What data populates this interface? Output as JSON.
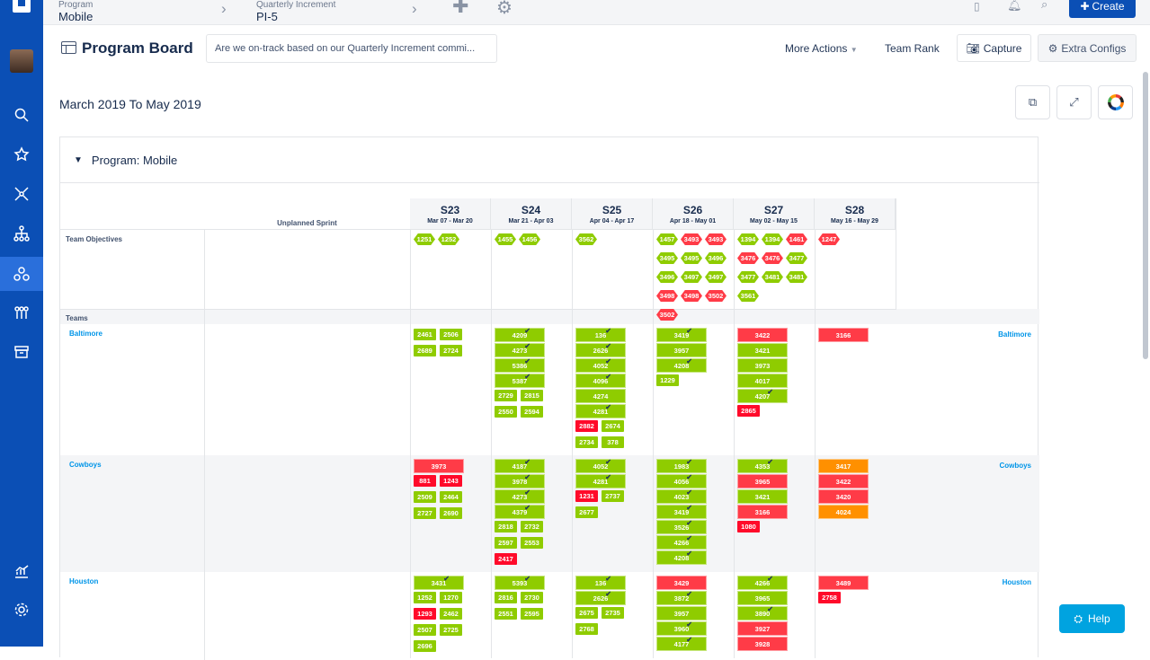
{
  "topbar": {
    "program_label": "Program",
    "program_value": "Mobile",
    "pi_label": "Quarterly Increment",
    "pi_value": "PI-5",
    "create_label": "Create"
  },
  "header": {
    "title": "Program Board",
    "question": "Are we on-track based on our Quarterly Increment commi...",
    "more_actions": "More Actions",
    "team_rank": "Team Rank",
    "capture": "Capture",
    "extra_configs": "Extra Configs"
  },
  "date_range": "March 2019 To May 2019",
  "board": {
    "program_title": "Program: Mobile",
    "unplanned": "Unplanned Sprint",
    "objectives_label": "Team Objectives",
    "teams_label": "Teams",
    "sprints": [
      {
        "name": "S23",
        "dates": "Mar 07 - Mar 20"
      },
      {
        "name": "S24",
        "dates": "Mar 21 - Apr 03"
      },
      {
        "name": "S25",
        "dates": "Apr 04 - Apr 17"
      },
      {
        "name": "S26",
        "dates": "Apr 18 - May 01"
      },
      {
        "name": "S27",
        "dates": "May 02 - May 15"
      },
      {
        "name": "S28",
        "dates": "May 16 - May 29"
      }
    ],
    "objectives": [
      [
        [
          "1251",
          "g"
        ],
        [
          "1252",
          "g"
        ]
      ],
      [
        [
          "1455",
          "g"
        ],
        [
          "1456",
          "g"
        ]
      ],
      [
        [
          "3562",
          "g"
        ]
      ],
      [
        [
          "1457",
          "g"
        ],
        [
          "3493",
          "r"
        ],
        [
          "3493",
          "r"
        ],
        [
          "3495",
          "g"
        ],
        [
          "3495",
          "g"
        ],
        [
          "3496",
          "g"
        ],
        [
          "3496",
          "g"
        ],
        [
          "3497",
          "g"
        ],
        [
          "3497",
          "g"
        ],
        [
          "3498",
          "r"
        ],
        [
          "3498",
          "r"
        ],
        [
          "3502",
          "r"
        ],
        [
          "3502",
          "r"
        ]
      ],
      [
        [
          "1394",
          "g"
        ],
        [
          "1394",
          "g"
        ],
        [
          "1461",
          "r"
        ],
        [
          "3476",
          "r"
        ],
        [
          "3476",
          "r"
        ],
        [
          "3477",
          "g"
        ],
        [
          "3477",
          "g"
        ],
        [
          "3481",
          "g"
        ],
        [
          "3481",
          "g"
        ],
        [
          "3561",
          "g"
        ]
      ],
      [
        [
          "1247",
          "r"
        ]
      ]
    ],
    "teams": [
      {
        "name": "Baltimore",
        "cells": [
          [
            [
              "chip",
              "2461",
              "g"
            ],
            [
              "chip",
              "2506",
              "g"
            ],
            [
              "chip",
              "2689",
              "g"
            ],
            [
              "chip",
              "2724",
              "g"
            ]
          ],
          [
            [
              "card",
              "4209",
              "g",
              1
            ],
            [
              "card",
              "4273",
              "g",
              1
            ],
            [
              "card",
              "5386",
              "g",
              1
            ],
            [
              "card",
              "5387",
              "g",
              1
            ],
            [
              "chip",
              "2729",
              "g"
            ],
            [
              "chip",
              "2815",
              "g"
            ],
            [
              "chip",
              "2550",
              "g"
            ],
            [
              "chip",
              "2594",
              "g"
            ]
          ],
          [
            [
              "card",
              "136",
              "g",
              1
            ],
            [
              "card",
              "2626",
              "g",
              1
            ],
            [
              "card",
              "4052",
              "g",
              1
            ],
            [
              "card",
              "4096",
              "g",
              1
            ],
            [
              "card",
              "4274",
              "g"
            ],
            [
              "card",
              "4281",
              "g",
              1
            ],
            [
              "chip",
              "2882",
              "r"
            ],
            [
              "chip",
              "2674",
              "g"
            ],
            [
              "chip",
              "2734",
              "g"
            ],
            [
              "chip",
              "378",
              "g"
            ]
          ],
          [
            [
              "card",
              "3419",
              "g",
              1
            ],
            [
              "card",
              "3957",
              "g"
            ],
            [
              "card",
              "4208",
              "g",
              1
            ],
            [
              "chip",
              "1229",
              "g"
            ]
          ],
          [
            [
              "card",
              "3422",
              "r"
            ],
            [
              "card",
              "3421",
              "g"
            ],
            [
              "card",
              "3973",
              "g"
            ],
            [
              "card",
              "4017",
              "g"
            ],
            [
              "card",
              "4207",
              "g",
              1
            ],
            [
              "chip",
              "2865",
              "r"
            ]
          ],
          [
            [
              "card",
              "3166",
              "r"
            ]
          ]
        ]
      },
      {
        "name": "Cowboys",
        "cells": [
          [
            [
              "card",
              "3973",
              "r"
            ],
            [
              "chip",
              "881",
              "r"
            ],
            [
              "chip",
              "1243",
              "r"
            ],
            [
              "chip",
              "2509",
              "g"
            ],
            [
              "chip",
              "2464",
              "g"
            ],
            [
              "chip",
              "2727",
              "g"
            ],
            [
              "chip",
              "2690",
              "g"
            ]
          ],
          [
            [
              "card",
              "4187",
              "g",
              1
            ],
            [
              "card",
              "3978",
              "g",
              1
            ],
            [
              "card",
              "4273",
              "g",
              1
            ],
            [
              "card",
              "4379",
              "g",
              1
            ],
            [
              "chip",
              "2818",
              "g"
            ],
            [
              "chip",
              "2732",
              "g"
            ],
            [
              "chip",
              "2597",
              "g"
            ],
            [
              "chip",
              "2553",
              "g"
            ],
            [
              "chip",
              "2417",
              "r"
            ]
          ],
          [
            [
              "card",
              "4052",
              "g",
              1
            ],
            [
              "card",
              "4281",
              "g",
              1
            ],
            [
              "chip",
              "1231",
              "r"
            ],
            [
              "chip",
              "2737",
              "g"
            ],
            [
              "chip",
              "2677",
              "g"
            ]
          ],
          [
            [
              "card",
              "1983",
              "g",
              1
            ],
            [
              "card",
              "4056",
              "g",
              1
            ],
            [
              "card",
              "4023",
              "g",
              1
            ],
            [
              "card",
              "3419",
              "g",
              1
            ],
            [
              "card",
              "3526",
              "g",
              1
            ],
            [
              "card",
              "4266",
              "g",
              1
            ],
            [
              "card",
              "4208",
              "g",
              1
            ]
          ],
          [
            [
              "card",
              "4353",
              "g",
              1
            ],
            [
              "card",
              "3965",
              "r"
            ],
            [
              "card",
              "3421",
              "g"
            ],
            [
              "card",
              "3166",
              "r"
            ],
            [
              "chip",
              "1080",
              "r"
            ]
          ],
          [
            [
              "card",
              "3417",
              "o"
            ],
            [
              "card",
              "3422",
              "r"
            ],
            [
              "card",
              "3420",
              "r"
            ],
            [
              "card",
              "4024",
              "o"
            ]
          ]
        ]
      },
      {
        "name": "Houston",
        "cells": [
          [
            [
              "card",
              "3431",
              "g",
              1
            ],
            [
              "chip",
              "1252",
              "g"
            ],
            [
              "chip",
              "1270",
              "g"
            ],
            [
              "chip",
              "1293",
              "r"
            ],
            [
              "chip",
              "2462",
              "g"
            ],
            [
              "chip",
              "2507",
              "g"
            ],
            [
              "chip",
              "2725",
              "g"
            ],
            [
              "chip",
              "2696",
              "g"
            ]
          ],
          [
            [
              "card",
              "5393",
              "g",
              1
            ],
            [
              "chip",
              "2816",
              "g"
            ],
            [
              "chip",
              "2730",
              "g"
            ],
            [
              "chip",
              "2551",
              "g"
            ],
            [
              "chip",
              "2595",
              "g"
            ]
          ],
          [
            [
              "card",
              "136",
              "g",
              1
            ],
            [
              "card",
              "2626",
              "g",
              1
            ],
            [
              "chip",
              "2675",
              "g"
            ],
            [
              "chip",
              "2735",
              "g"
            ],
            [
              "chip",
              "2768",
              "g"
            ]
          ],
          [
            [
              "card",
              "3429",
              "r"
            ],
            [
              "card",
              "3872",
              "g",
              1
            ],
            [
              "card",
              "3957",
              "g"
            ],
            [
              "card",
              "3960",
              "g",
              1
            ],
            [
              "card",
              "4177",
              "g",
              1
            ]
          ],
          [
            [
              "card",
              "4266",
              "g",
              1
            ],
            [
              "card",
              "3965",
              "g"
            ],
            [
              "card",
              "3890",
              "g",
              1
            ],
            [
              "card",
              "3927",
              "r"
            ],
            [
              "card",
              "3928",
              "r"
            ]
          ],
          [
            [
              "card",
              "3489",
              "r"
            ],
            [
              "chip",
              "2758",
              "r"
            ]
          ]
        ]
      }
    ]
  },
  "help_label": "Help"
}
